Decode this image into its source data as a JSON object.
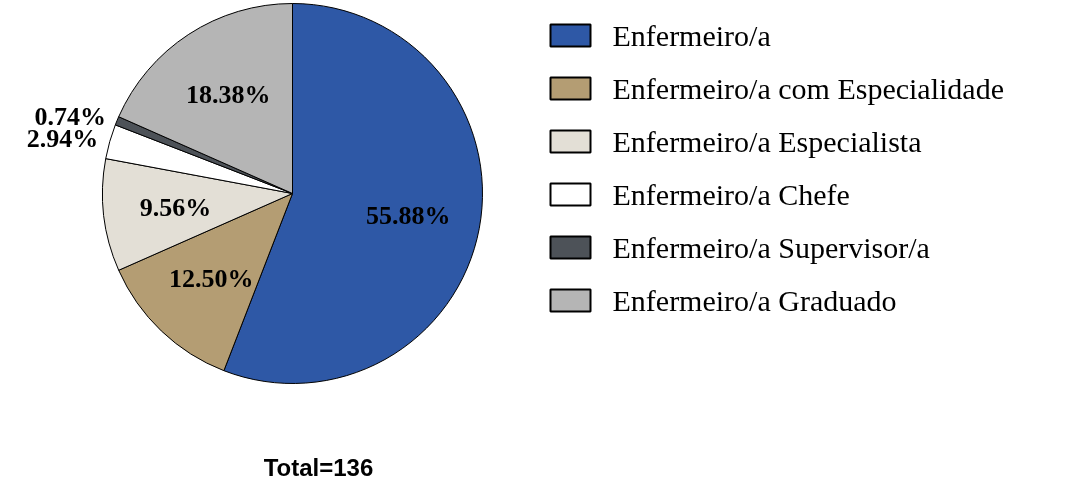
{
  "chart_data": {
    "type": "pie",
    "legend": "right",
    "categories": [
      "Enfermeiro/a",
      "Enfermeiro/a com Especialidade",
      "Enfermeiro/a Especialista",
      "Enfermeiro/a Chefe",
      "Enfermeiro/a Supervisor/a",
      "Enfermeiro/a Graduado"
    ],
    "values": [
      55.88,
      12.5,
      9.56,
      2.94,
      0.74,
      18.38
    ],
    "colors": [
      "#2e58a6",
      "#b49d73",
      "#e3dfd6",
      "#ffffff",
      "#4d5258",
      "#b5b5b5"
    ],
    "value_labels": [
      "55.88%",
      "12.50%",
      "9.56%",
      "2.94%",
      "0.74%",
      "18.38%"
    ],
    "annotations": [
      "Total=136"
    ]
  }
}
